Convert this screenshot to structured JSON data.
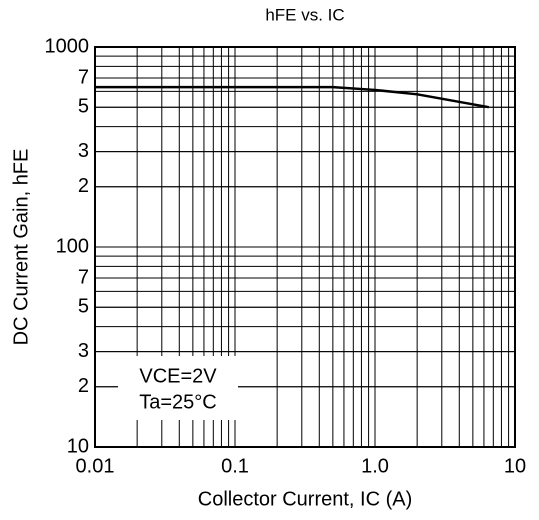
{
  "chart_data": {
    "type": "line",
    "title": "hFE vs. IC",
    "xlabel": "Collector Current, IC (A)",
    "ylabel": "DC Current Gain, hFE",
    "annotations": [
      "VCE=2V",
      "Ta=25°C"
    ],
    "log_x": true,
    "log_y": true,
    "grid": true,
    "x": [
      0.01,
      0.5,
      1,
      2,
      6.5
    ],
    "series": [
      {
        "color": "#000000",
        "values": [
          630,
          630,
          610,
          580,
          500
        ]
      }
    ],
    "xlim": [
      0.01,
      10
    ],
    "ylim": [
      10,
      1000
    ],
    "xticks": [
      0.01,
      0.1,
      {
        "value": 1,
        "label": "1.0"
      },
      10
    ],
    "yticks": [
      1000,
      {
        "value": 700,
        "label": "7"
      },
      {
        "value": 500,
        "label": "5"
      },
      {
        "value": 300,
        "label": "3"
      },
      {
        "value": 200,
        "label": "2"
      },
      100,
      {
        "value": 70,
        "label": "7"
      },
      {
        "value": 50,
        "label": "5"
      },
      {
        "value": 30,
        "label": "3"
      },
      {
        "value": 20,
        "label": "2"
      },
      10
    ],
    "xminor": [
      0.02,
      0.03,
      0.04,
      0.05,
      0.06,
      0.07,
      0.08,
      0.09,
      0.2,
      0.3,
      0.4,
      0.5,
      0.6,
      0.7,
      0.8,
      0.9,
      2,
      3,
      4,
      5,
      6,
      7,
      8,
      9
    ],
    "yminor": [
      20,
      30,
      40,
      50,
      60,
      70,
      80,
      90,
      200,
      300,
      400,
      500,
      600,
      700,
      800,
      900
    ]
  }
}
